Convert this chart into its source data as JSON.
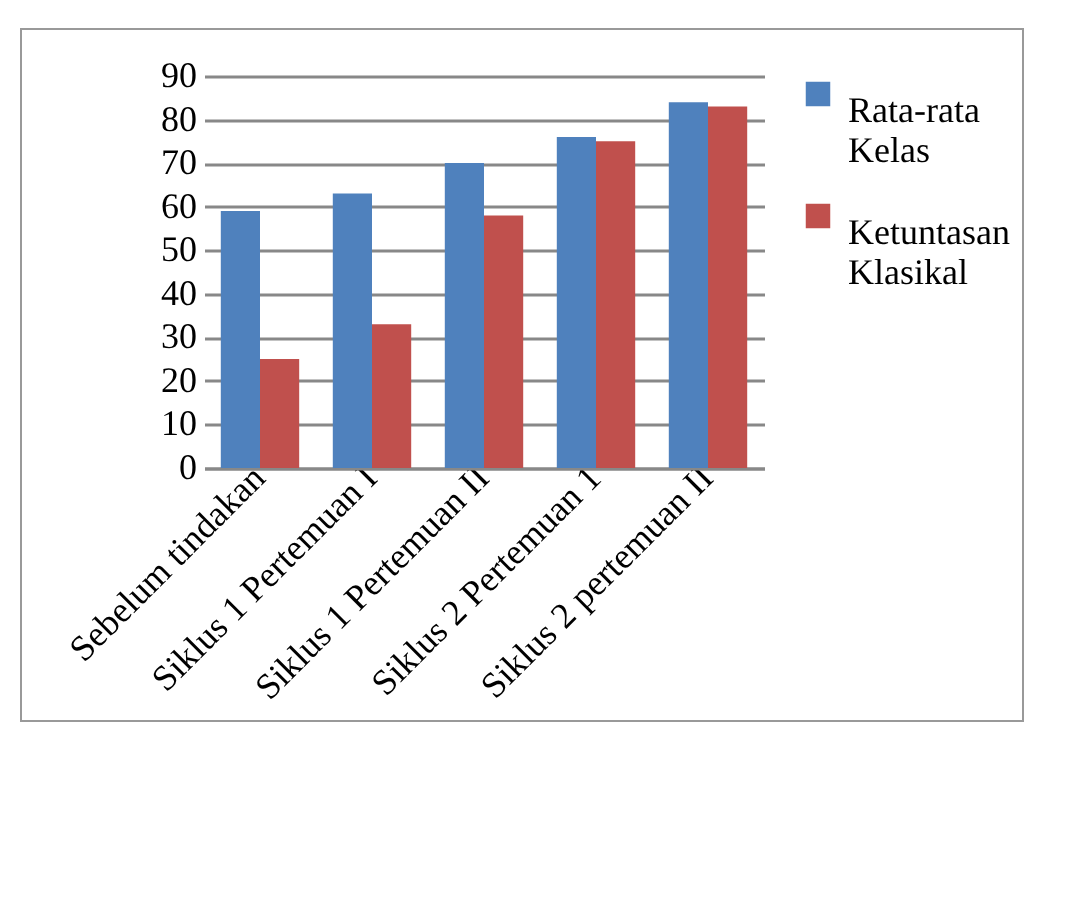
{
  "chart_data": {
    "type": "bar",
    "categories": [
      "Sebelum tindakan",
      "Siklus 1 Pertemuan I",
      "Siklus 1 Pertemuan II",
      "Siklus 2 Pertemuan 1",
      "Siklus 2 pertemuan II"
    ],
    "series": [
      {
        "name": "Rata-rata Kelas",
        "color": "#4f81bd",
        "values": [
          59,
          63,
          70,
          76,
          84
        ]
      },
      {
        "name": "Ketuntasan Klasikal",
        "color": "#c0504d",
        "values": [
          25,
          33,
          58,
          75,
          83
        ]
      }
    ],
    "ylim": [
      0,
      90
    ],
    "yticks": [
      0,
      10,
      20,
      30,
      40,
      50,
      60,
      70,
      80,
      90
    ],
    "grid": "y",
    "legend": "right"
  }
}
